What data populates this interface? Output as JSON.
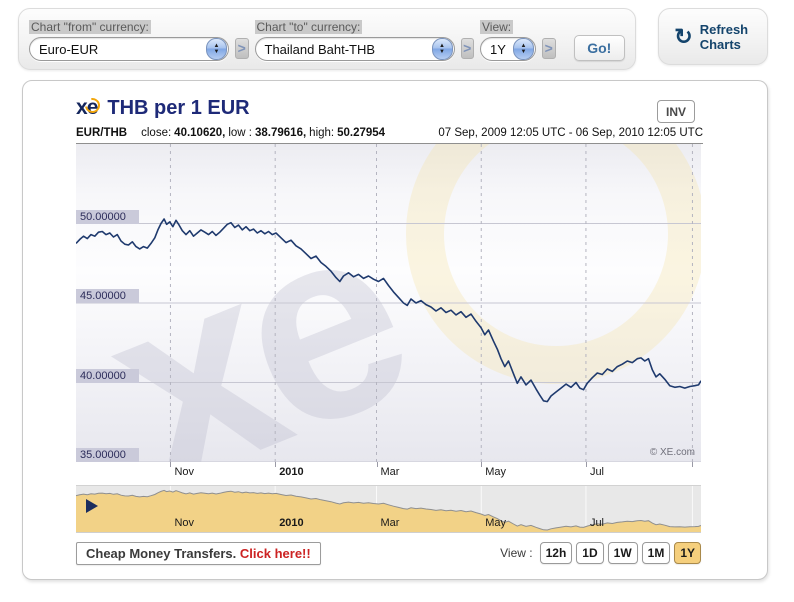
{
  "toolbar": {
    "from_label": "Chart \"from\" currency:",
    "from_value": "Euro-EUR",
    "to_label": "Chart \"to\" currency:",
    "to_value": "Thailand Baht-THB",
    "view_label": "View:",
    "view_value": "1Y",
    "separator_glyph": ">",
    "go_label": "Go!",
    "refresh_icon_glyph": "↻",
    "refresh_label": "Refresh Charts"
  },
  "chart": {
    "logo_text": "xe",
    "title": "THB per 1 EUR",
    "inv_label": "INV",
    "pair": "EUR/THB",
    "stats": {
      "close_label": "close:",
      "close_value": "40.10620,",
      "low_label": "low :",
      "low_value": "38.79616,",
      "high_label": "high:",
      "high_value": "50.27954"
    },
    "date_range": "07 Sep, 2009 12:05 UTC - 06 Sep, 2010 12:05 UTC",
    "copyright": "© XE.com"
  },
  "footer": {
    "promo_text": "Cheap Money Transfers.",
    "promo_link": "Click here!!",
    "view_label": "View :",
    "periods": [
      {
        "label": "12h",
        "selected": false
      },
      {
        "label": "1D",
        "selected": false
      },
      {
        "label": "1W",
        "selected": false
      },
      {
        "label": "1M",
        "selected": false
      },
      {
        "label": "1Y",
        "selected": true
      }
    ]
  },
  "colors": {
    "line": "#1f3a6e",
    "mini_fill": "#f2d287",
    "mini_stroke": "#8f8f8f",
    "grid_h": "#c7c7d2",
    "grid_v": "#b4b4c0",
    "badge_bg": "#cacada",
    "selected_period": "#f5cf7d",
    "accent_navy": "#14446c",
    "title_navy": "#1e2a78",
    "promo_red": "#cc2222"
  },
  "chart_data": {
    "type": "line",
    "title": "THB per 1 EUR",
    "series_name": "EUR/THB",
    "x_start": "07 Sep 2009 12:05 UTC",
    "x_end": "06 Sep 2010 12:05 UTC",
    "ylim": [
      35,
      55
    ],
    "grid": true,
    "legend": false,
    "close": 40.1062,
    "low": 38.79616,
    "high": 50.27954,
    "yticks": [
      {
        "value": 50,
        "label": "50.00000"
      },
      {
        "value": 45,
        "label": "45.00000"
      },
      {
        "value": 40,
        "label": "40.00000"
      },
      {
        "value": 35,
        "label": "35.00000"
      }
    ],
    "xticks": [
      {
        "t": 0.1511,
        "label": "Nov",
        "bold": false
      },
      {
        "t": 0.3187,
        "label": "2010",
        "bold": true
      },
      {
        "t": 0.4808,
        "label": "Mar",
        "bold": false
      },
      {
        "t": 0.6484,
        "label": "May",
        "bold": false
      },
      {
        "t": 0.8159,
        "label": "Jul",
        "bold": false
      },
      {
        "t": 0.9863,
        "label": "",
        "bold": false
      }
    ],
    "points": [
      [
        0,
        48.75
      ],
      [
        0.006,
        49.0
      ],
      [
        0.012,
        49.2
      ],
      [
        0.018,
        49.05
      ],
      [
        0.024,
        49.3
      ],
      [
        0.03,
        49.2
      ],
      [
        0.036,
        49.45
      ],
      [
        0.042,
        49.5
      ],
      [
        0.048,
        49.3
      ],
      [
        0.054,
        49.4
      ],
      [
        0.06,
        49.15
      ],
      [
        0.066,
        49.3
      ],
      [
        0.072,
        48.9
      ],
      [
        0.078,
        48.7
      ],
      [
        0.084,
        48.65
      ],
      [
        0.09,
        48.85
      ],
      [
        0.096,
        48.55
      ],
      [
        0.102,
        48.4
      ],
      [
        0.108,
        48.55
      ],
      [
        0.114,
        48.45
      ],
      [
        0.12,
        48.75
      ],
      [
        0.126,
        49.1
      ],
      [
        0.131,
        49.6
      ],
      [
        0.136,
        50.0
      ],
      [
        0.141,
        50.28
      ],
      [
        0.145,
        49.95
      ],
      [
        0.15,
        50.1
      ],
      [
        0.155,
        49.8
      ],
      [
        0.16,
        50.2
      ],
      [
        0.165,
        49.9
      ],
      [
        0.17,
        49.55
      ],
      [
        0.176,
        49.3
      ],
      [
        0.182,
        49.55
      ],
      [
        0.188,
        49.2
      ],
      [
        0.194,
        49.4
      ],
      [
        0.2,
        49.6
      ],
      [
        0.206,
        49.45
      ],
      [
        0.212,
        49.3
      ],
      [
        0.218,
        49.5
      ],
      [
        0.224,
        49.25
      ],
      [
        0.23,
        49.45
      ],
      [
        0.236,
        49.7
      ],
      [
        0.242,
        49.95
      ],
      [
        0.248,
        50.05
      ],
      [
        0.254,
        49.75
      ],
      [
        0.26,
        49.9
      ],
      [
        0.266,
        49.6
      ],
      [
        0.272,
        49.8
      ],
      [
        0.278,
        49.55
      ],
      [
        0.284,
        49.65
      ],
      [
        0.29,
        49.4
      ],
      [
        0.296,
        49.55
      ],
      [
        0.302,
        49.35
      ],
      [
        0.308,
        49.5
      ],
      [
        0.314,
        49.3
      ],
      [
        0.32,
        49.4
      ],
      [
        0.328,
        49.1
      ],
      [
        0.336,
        48.8
      ],
      [
        0.344,
        48.95
      ],
      [
        0.352,
        48.6
      ],
      [
        0.36,
        48.4
      ],
      [
        0.368,
        48.1
      ],
      [
        0.376,
        47.8
      ],
      [
        0.384,
        47.95
      ],
      [
        0.392,
        47.55
      ],
      [
        0.4,
        47.3
      ],
      [
        0.408,
        47.0
      ],
      [
        0.416,
        46.6
      ],
      [
        0.422,
        46.35
      ],
      [
        0.428,
        46.7
      ],
      [
        0.436,
        46.9
      ],
      [
        0.444,
        46.65
      ],
      [
        0.452,
        46.8
      ],
      [
        0.46,
        46.55
      ],
      [
        0.468,
        46.7
      ],
      [
        0.476,
        46.5
      ],
      [
        0.484,
        46.35
      ],
      [
        0.492,
        46.55
      ],
      [
        0.5,
        46.1
      ],
      [
        0.508,
        45.7
      ],
      [
        0.516,
        45.35
      ],
      [
        0.524,
        45.0
      ],
      [
        0.53,
        44.85
      ],
      [
        0.536,
        45.25
      ],
      [
        0.544,
        45.0
      ],
      [
        0.552,
        45.15
      ],
      [
        0.56,
        44.9
      ],
      [
        0.568,
        44.75
      ],
      [
        0.576,
        44.5
      ],
      [
        0.584,
        44.7
      ],
      [
        0.592,
        44.4
      ],
      [
        0.6,
        44.55
      ],
      [
        0.608,
        44.25
      ],
      [
        0.616,
        44.45
      ],
      [
        0.624,
        44.1
      ],
      [
        0.632,
        44.3
      ],
      [
        0.64,
        43.85
      ],
      [
        0.648,
        43.45
      ],
      [
        0.654,
        43.0
      ],
      [
        0.66,
        43.3
      ],
      [
        0.668,
        42.6
      ],
      [
        0.674,
        42.1
      ],
      [
        0.68,
        41.5
      ],
      [
        0.686,
        41.0
      ],
      [
        0.692,
        41.35
      ],
      [
        0.7,
        40.55
      ],
      [
        0.706,
        39.95
      ],
      [
        0.712,
        40.35
      ],
      [
        0.72,
        39.85
      ],
      [
        0.728,
        40.15
      ],
      [
        0.736,
        39.6
      ],
      [
        0.742,
        39.2
      ],
      [
        0.748,
        38.85
      ],
      [
        0.754,
        38.8
      ],
      [
        0.76,
        39.15
      ],
      [
        0.768,
        39.4
      ],
      [
        0.776,
        39.65
      ],
      [
        0.784,
        39.9
      ],
      [
        0.792,
        39.7
      ],
      [
        0.8,
        40.0
      ],
      [
        0.806,
        39.65
      ],
      [
        0.812,
        39.55
      ],
      [
        0.818,
        39.95
      ],
      [
        0.826,
        40.3
      ],
      [
        0.834,
        40.6
      ],
      [
        0.842,
        40.5
      ],
      [
        0.85,
        40.85
      ],
      [
        0.858,
        40.7
      ],
      [
        0.866,
        41.0
      ],
      [
        0.874,
        41.15
      ],
      [
        0.882,
        41.35
      ],
      [
        0.89,
        41.25
      ],
      [
        0.898,
        41.5
      ],
      [
        0.904,
        41.55
      ],
      [
        0.91,
        41.35
      ],
      [
        0.916,
        41.5
      ],
      [
        0.922,
        40.8
      ],
      [
        0.928,
        40.35
      ],
      [
        0.934,
        40.55
      ],
      [
        0.942,
        40.2
      ],
      [
        0.95,
        39.8
      ],
      [
        0.958,
        39.7
      ],
      [
        0.966,
        39.75
      ],
      [
        0.974,
        39.65
      ],
      [
        0.982,
        39.75
      ],
      [
        0.99,
        39.8
      ],
      [
        0.996,
        39.85
      ],
      [
        1,
        40.11
      ]
    ]
  }
}
